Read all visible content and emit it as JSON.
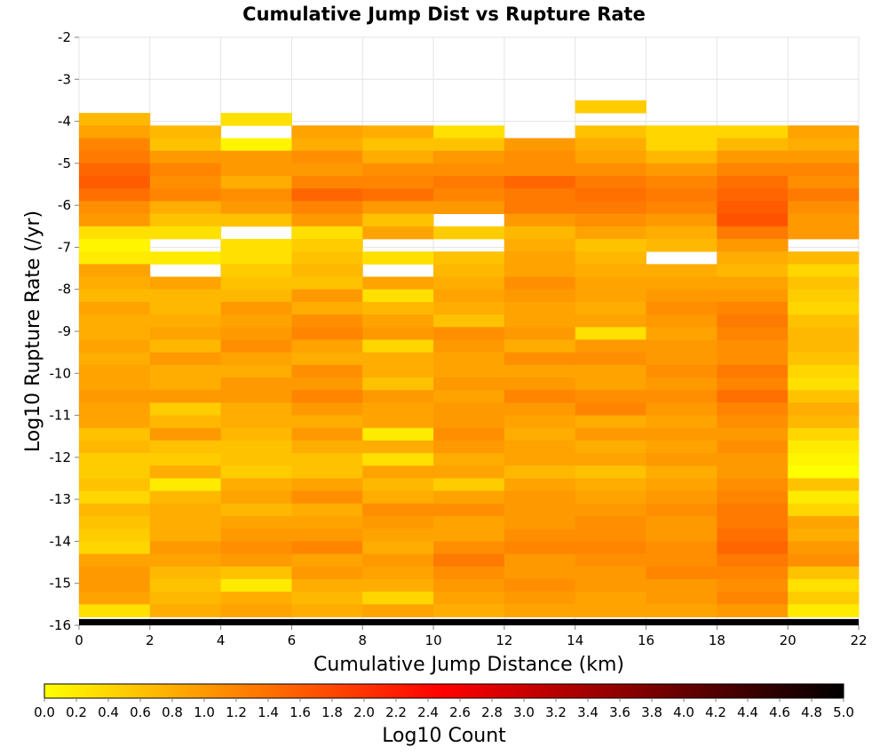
{
  "chart_data": {
    "type": "heatmap",
    "title": "Cumulative Jump Dist vs Rupture Rate",
    "xlabel": "Cumulative Jump Distance (km)",
    "ylabel": "Log10 Rupture Rate (/yr)",
    "colorbar_label": "Log10 Count",
    "xlim": [
      0,
      22
    ],
    "ylim": [
      -16,
      -2
    ],
    "x_ticks": [
      "0",
      "2",
      "4",
      "6",
      "8",
      "10",
      "12",
      "14",
      "16",
      "18",
      "20",
      "22"
    ],
    "y_ticks": [
      "-2",
      "-3",
      "-4",
      "-5",
      "-6",
      "-7",
      "-8",
      "-9",
      "-10",
      "-11",
      "-12",
      "-13",
      "-14",
      "-15",
      "-16"
    ],
    "colorbar_ticks": [
      "0.0",
      "0.2",
      "0.4",
      "0.6",
      "0.8",
      "1.0",
      "1.2",
      "1.4",
      "1.6",
      "1.8",
      "2.0",
      "2.2",
      "2.4",
      "2.6",
      "2.8",
      "3.0",
      "3.2",
      "3.4",
      "3.6",
      "3.8",
      "4.0",
      "4.2",
      "4.4",
      "4.6",
      "4.8",
      "5.0"
    ],
    "colorbar_range": [
      0,
      5
    ],
    "colorscale": [
      "#ffff00",
      "#ffaa00",
      "#ff5500",
      "#ff0000",
      "#aa0000",
      "#550000",
      "#000000"
    ],
    "x_bin_edges": [
      0,
      2,
      4,
      6,
      8,
      10,
      12,
      14,
      16,
      18,
      20,
      22
    ],
    "y_bin_size": 0.3,
    "y_first_bin_top": -2.0,
    "bottom_band": {
      "y_range": [
        -16,
        -15.85
      ],
      "value": 5.0
    },
    "grid": true,
    "missing_color": "#ffffff",
    "columns": [
      [
        null,
        null,
        null,
        null,
        null,
        null,
        0.7,
        0.9,
        1.2,
        1.3,
        1.5,
        1.6,
        1.4,
        1.1,
        1.0,
        0.3,
        0.1,
        0.2,
        0.9,
        0.8,
        0.7,
        0.9,
        0.8,
        0.8,
        0.9,
        0.8,
        0.9,
        0.9,
        1.0,
        0.9,
        0.9,
        0.6,
        0.7,
        0.5,
        0.5,
        0.6,
        0.4,
        0.7,
        0.6,
        0.5,
        0.4,
        0.9,
        1.0,
        1.0,
        0.9,
        0.3
      ],
      [
        null,
        null,
        null,
        null,
        null,
        null,
        null,
        0.7,
        0.6,
        1.0,
        1.2,
        1.1,
        1.2,
        0.8,
        0.6,
        0.3,
        null,
        0.2,
        null,
        0.9,
        0.7,
        0.7,
        0.8,
        0.9,
        0.7,
        1.0,
        0.8,
        0.8,
        1.0,
        0.5,
        0.7,
        1.0,
        0.6,
        0.5,
        0.8,
        0.2,
        0.7,
        0.8,
        0.8,
        0.8,
        1.0,
        0.9,
        0.7,
        0.6,
        0.7,
        0.8
      ],
      [
        null,
        null,
        null,
        null,
        null,
        null,
        0.3,
        null,
        0.1,
        1.0,
        1.0,
        0.8,
        1.1,
        1.0,
        0.6,
        null,
        0.3,
        0.3,
        0.5,
        0.6,
        0.7,
        1.0,
        0.9,
        1.0,
        1.1,
        0.9,
        0.8,
        1.0,
        1.0,
        0.8,
        0.8,
        0.7,
        0.6,
        0.6,
        0.5,
        0.8,
        0.9,
        0.7,
        0.9,
        1.0,
        1.1,
        1.0,
        0.6,
        0.2,
        0.8,
        0.9
      ],
      [
        null,
        null,
        null,
        null,
        null,
        null,
        null,
        0.9,
        0.8,
        1.1,
        1.0,
        1.2,
        1.5,
        1.2,
        1.0,
        0.3,
        0.5,
        0.6,
        0.7,
        0.6,
        1.0,
        0.8,
        1.1,
        1.2,
        0.9,
        0.8,
        1.1,
        1.0,
        1.2,
        1.0,
        0.8,
        1.0,
        0.8,
        0.6,
        0.6,
        0.9,
        1.1,
        0.8,
        0.9,
        1.0,
        1.2,
        0.9,
        1.0,
        0.8,
        0.7,
        0.8
      ],
      [
        null,
        null,
        null,
        null,
        null,
        null,
        null,
        0.8,
        0.6,
        0.8,
        1.1,
        1.2,
        1.4,
        1.0,
        0.6,
        0.9,
        null,
        0.3,
        null,
        0.9,
        0.3,
        0.7,
        0.9,
        1.0,
        0.4,
        0.8,
        0.8,
        0.6,
        1.0,
        0.9,
        0.9,
        0.2,
        0.8,
        0.3,
        0.9,
        0.7,
        0.8,
        1.1,
        1.0,
        0.9,
        0.8,
        1.0,
        0.9,
        0.8,
        0.4,
        0.9
      ],
      [
        null,
        null,
        null,
        null,
        null,
        null,
        null,
        0.3,
        0.6,
        1.0,
        1.1,
        1.3,
        1.2,
        1.0,
        null,
        0.5,
        null,
        0.6,
        0.7,
        0.8,
        0.9,
        0.8,
        0.6,
        1.1,
        1.0,
        0.9,
        0.9,
        1.0,
        0.9,
        1.0,
        1.0,
        1.1,
        1.0,
        0.8,
        0.9,
        0.5,
        0.9,
        1.1,
        0.9,
        0.9,
        1.1,
        1.3,
        1.1,
        1.0,
        0.9,
        0.8
      ],
      [
        null,
        null,
        null,
        null,
        null,
        null,
        null,
        null,
        1.0,
        1.1,
        1.1,
        1.5,
        1.3,
        1.3,
        1.0,
        0.7,
        0.8,
        0.9,
        0.9,
        1.1,
        1.0,
        0.9,
        0.9,
        1.0,
        0.8,
        1.1,
        0.9,
        1.0,
        1.2,
        1.0,
        0.9,
        0.8,
        0.9,
        0.9,
        0.7,
        0.9,
        1.0,
        1.0,
        1.0,
        1.1,
        1.2,
        1.0,
        1.0,
        1.1,
        1.0,
        0.9
      ],
      [
        null,
        null,
        null,
        null,
        null,
        0.5,
        null,
        0.6,
        0.8,
        0.9,
        1.1,
        1.3,
        1.4,
        1.3,
        1.1,
        0.9,
        0.6,
        0.7,
        0.8,
        0.9,
        0.9,
        0.8,
        0.9,
        0.3,
        1.0,
        1.1,
        0.9,
        0.9,
        1.1,
        1.2,
        0.8,
        1.0,
        0.8,
        0.9,
        0.6,
        0.8,
        0.9,
        1.0,
        1.1,
        1.1,
        1.2,
        1.1,
        1.0,
        1.0,
        0.9,
        0.9
      ],
      [
        null,
        null,
        null,
        null,
        null,
        null,
        null,
        0.4,
        0.4,
        0.7,
        1.0,
        1.2,
        1.3,
        1.2,
        1.0,
        0.8,
        0.7,
        null,
        0.8,
        0.9,
        1.0,
        1.1,
        1.0,
        0.9,
        1.0,
        1.0,
        1.1,
        1.0,
        1.1,
        1.0,
        0.9,
        1.0,
        0.9,
        1.0,
        0.8,
        0.9,
        1.0,
        1.1,
        1.0,
        1.0,
        1.1,
        1.1,
        1.2,
        1.0,
        1.0,
        0.9
      ],
      [
        null,
        null,
        null,
        null,
        null,
        null,
        null,
        0.4,
        0.7,
        1.0,
        1.2,
        1.4,
        1.5,
        1.6,
        1.7,
        1.3,
        1.0,
        0.8,
        0.7,
        0.9,
        1.0,
        1.2,
        1.3,
        1.2,
        1.1,
        1.1,
        1.3,
        1.2,
        1.4,
        1.2,
        1.1,
        1.0,
        1.1,
        1.0,
        1.0,
        1.1,
        1.2,
        1.3,
        1.3,
        1.4,
        1.5,
        1.3,
        1.2,
        1.1,
        1.2,
        1.0
      ],
      [
        null,
        null,
        null,
        null,
        null,
        null,
        null,
        0.9,
        0.8,
        1.0,
        1.2,
        1.1,
        1.3,
        1.1,
        1.0,
        1.0,
        null,
        0.7,
        0.4,
        0.6,
        0.5,
        0.4,
        0.6,
        0.7,
        0.7,
        0.6,
        0.4,
        0.3,
        0.6,
        0.8,
        0.7,
        0.4,
        0.2,
        0.1,
        0.0,
        0.6,
        0.2,
        0.4,
        0.9,
        0.8,
        1.0,
        1.1,
        0.6,
        0.3,
        0.5,
        0.2
      ]
    ]
  }
}
